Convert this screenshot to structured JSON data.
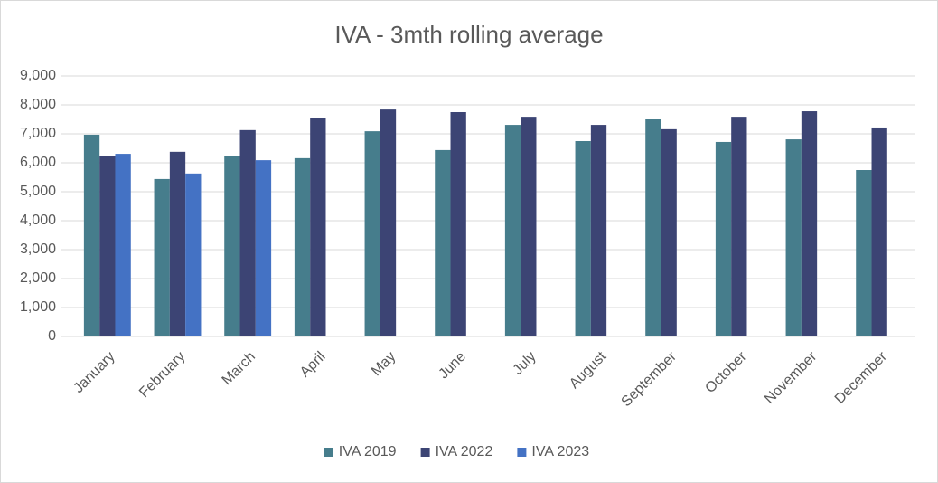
{
  "chart_data": {
    "type": "bar",
    "title": "IVA - 3mth rolling average",
    "categories": [
      "January",
      "February",
      "March",
      "April",
      "May",
      "June",
      "July",
      "August",
      "September",
      "October",
      "November",
      "December"
    ],
    "series": [
      {
        "name": "IVA 2019",
        "color": "#467d8c",
        "values": [
          6970,
          5440,
          6250,
          6160,
          7090,
          6440,
          7310,
          6750,
          7500,
          6720,
          6810,
          5750
        ]
      },
      {
        "name": "IVA 2022",
        "color": "#3c4474",
        "values": [
          6250,
          6380,
          7130,
          7560,
          7840,
          7750,
          7590,
          7310,
          7160,
          7590,
          7780,
          7220
        ]
      },
      {
        "name": "IVA 2023",
        "color": "#4472c4",
        "values": [
          6310,
          5630,
          6090,
          null,
          null,
          null,
          null,
          null,
          null,
          null,
          null,
          null
        ]
      }
    ],
    "ylim": [
      0,
      9000
    ],
    "yticks": [
      0,
      {
        "value": 1000,
        "label": "1,000"
      },
      {
        "value": 2000,
        "label": "2,000"
      },
      {
        "value": 3000,
        "label": "3,000"
      },
      {
        "value": 4000,
        "label": "4,000"
      },
      {
        "value": 5000,
        "label": "5,000"
      },
      {
        "value": 6000,
        "label": "6,000"
      },
      {
        "value": 7000,
        "label": "7,000"
      },
      {
        "value": 8000,
        "label": "8,000"
      },
      {
        "value": 9000,
        "label": "9,000"
      }
    ],
    "grid": true,
    "legend": "bottom"
  }
}
